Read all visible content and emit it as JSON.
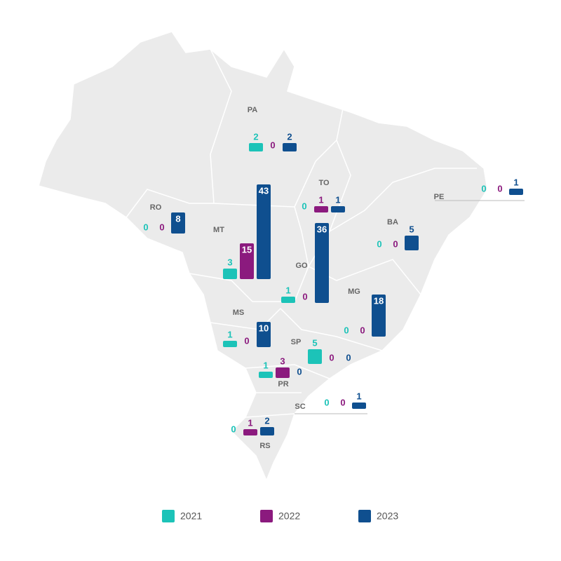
{
  "chart_data": {
    "type": "bar",
    "categories": [
      "PA",
      "TO",
      "RO",
      "MT",
      "GO",
      "BA",
      "MG",
      "MS",
      "SP",
      "PR",
      "SC",
      "RS",
      "PE"
    ],
    "series": [
      {
        "name": "2021",
        "color": "#1cc3b8",
        "values": [
          2,
          0,
          0,
          3,
          1,
          0,
          0,
          1,
          5,
          1,
          0,
          0,
          0
        ]
      },
      {
        "name": "2022",
        "color": "#8b1a7e",
        "values": [
          0,
          1,
          0,
          15,
          0,
          0,
          0,
          0,
          0,
          3,
          0,
          1,
          0
        ]
      },
      {
        "name": "2023",
        "color": "#0f4f8f",
        "values": [
          2,
          1,
          8,
          43,
          36,
          5,
          18,
          10,
          0,
          0,
          1,
          2,
          1
        ]
      }
    ]
  }
}
